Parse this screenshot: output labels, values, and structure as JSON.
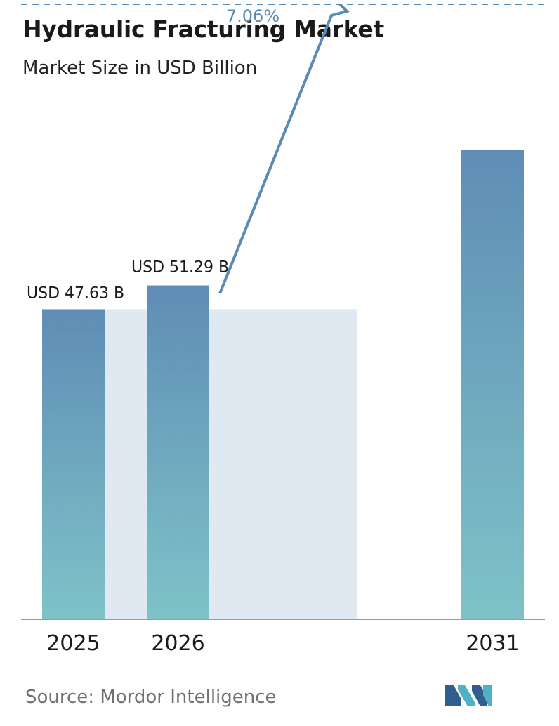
{
  "chart_data": {
    "type": "bar",
    "title": "Hydraulic Fracturing Market",
    "subtitle": "Market Size in USD Billion",
    "categories": [
      "2025",
      "2026",
      "2031"
    ],
    "values": [
      47.63,
      51.29,
      72.13
    ],
    "data_labels": [
      "USD 47.63 B",
      "USD 51.29 B",
      ""
    ],
    "cagr_label": "7.06%",
    "ylim": [
      0,
      100
    ],
    "grid": false,
    "legend": "none"
  },
  "source": "Source:  Mordor Intelligence",
  "colors": {
    "bar_top": "#5f8db5",
    "bar_bottom": "#7ec3c8",
    "highlight_band": "#e0e9f2",
    "arrow": "#5b8ab3",
    "axis": "#9a9a9a",
    "logo_dark": "#2f5e8f",
    "logo_light": "#4fb0c6"
  },
  "logo": {
    "name": "mordor-intelligence-logo"
  }
}
